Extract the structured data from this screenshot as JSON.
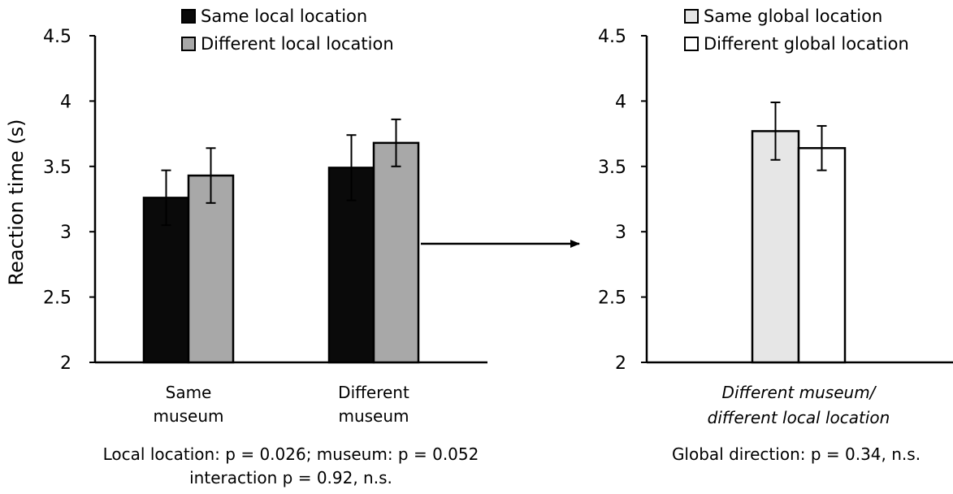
{
  "chart_data": [
    {
      "type": "bar",
      "ylabel": "Reaction time (s)",
      "ylim": [
        2,
        4.5
      ],
      "yticks": [
        "2",
        "2.5",
        "3",
        "3.5",
        "4",
        "4.5"
      ],
      "categories": [
        "Same museum",
        "Different museum"
      ],
      "category_lines": [
        [
          "Same",
          "museum"
        ],
        [
          "Different",
          "museum"
        ]
      ],
      "series": [
        {
          "name": "Same local location",
          "color": "#0a0a0a",
          "values": [
            3.26,
            3.49
          ],
          "errors": [
            0.21,
            0.25
          ]
        },
        {
          "name": "Different local location",
          "color": "#a8a8a8",
          "values": [
            3.43,
            3.68
          ],
          "errors": [
            0.21,
            0.18
          ]
        }
      ],
      "stats_lines": [
        "Local location: p = 0.026;  museum: p = 0.052",
        "interaction p = 0.92, n.s."
      ],
      "grid": false,
      "legend_position": "top"
    },
    {
      "type": "bar",
      "ylabel": "",
      "ylim": [
        2,
        4.5
      ],
      "yticks": [
        "2",
        "2.5",
        "3",
        "3.5",
        "4",
        "4.5"
      ],
      "categories": [
        "Different museum/ different local location"
      ],
      "category_lines": [
        [
          "Different museum/",
          "different local location"
        ]
      ],
      "series": [
        {
          "name": "Same global location",
          "color": "#e6e6e6",
          "values": [
            3.77
          ],
          "errors": [
            0.22
          ]
        },
        {
          "name": "Different global location",
          "color": "#ffffff",
          "values": [
            3.64
          ],
          "errors": [
            0.17
          ]
        }
      ],
      "stats_lines": [
        "Global direction: p = 0.34, n.s."
      ],
      "grid": false,
      "legend_position": "top"
    }
  ]
}
